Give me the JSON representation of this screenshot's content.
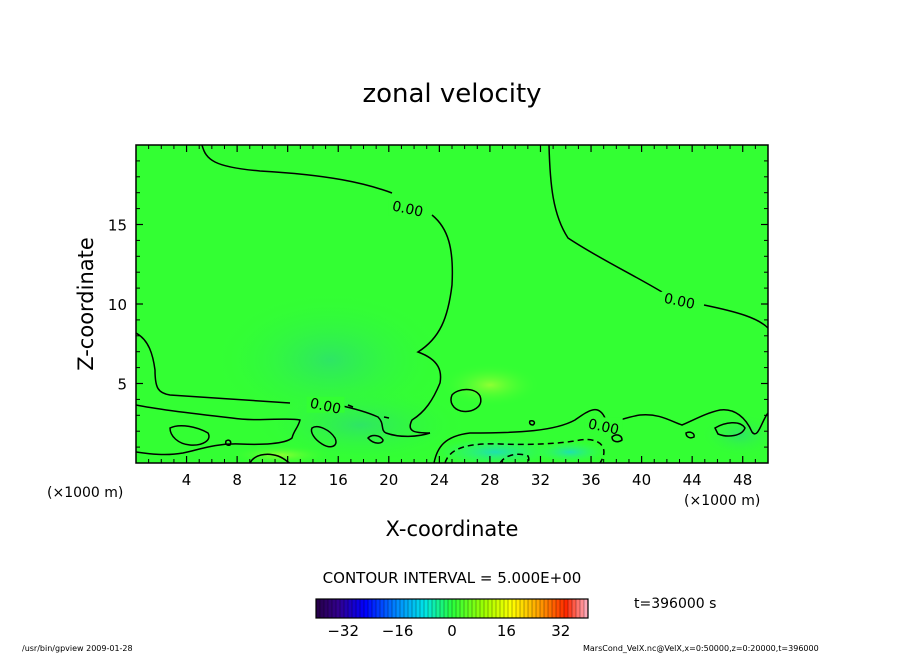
{
  "chart_data": {
    "type": "heatmap",
    "title": "zonal velocity",
    "xlabel": "X-coordinate",
    "ylabel": "Z-coordinate",
    "x_unit_left": "(×1000 m)",
    "x_unit_right": "(×1000 m)",
    "xlim": [
      0,
      50
    ],
    "ylim": [
      0,
      20
    ],
    "x_ticks": [
      4,
      8,
      12,
      16,
      20,
      24,
      28,
      32,
      36,
      40,
      44,
      48
    ],
    "y_ticks": [
      5,
      10,
      15
    ],
    "contour_labels": [
      {
        "text": "0.00",
        "x": 21.5,
        "y": 16.0
      },
      {
        "text": "0.00",
        "x": 43.0,
        "y": 10.2
      },
      {
        "text": "0.00",
        "x": 15.0,
        "y": 3.6
      },
      {
        "text": "0.00",
        "x": 37.0,
        "y": 2.3
      }
    ],
    "contour_interval_text": "CONTOUR INTERVAL = 5.000E+00",
    "colorbar": {
      "min": -40,
      "max": 40,
      "ticks": [
        -32,
        -16,
        0,
        16,
        32
      ],
      "tick_labels": [
        "−32",
        "−16",
        "0",
        "16",
        "32"
      ]
    },
    "time_label": "t=396000 s",
    "background_color": "#33ff33"
  },
  "footer": {
    "left": "/usr/bin/gpview   2009-01-28",
    "right": "MarsCond_VelX.nc@VelX,x=0:50000,z=0:20000,t=396000"
  }
}
